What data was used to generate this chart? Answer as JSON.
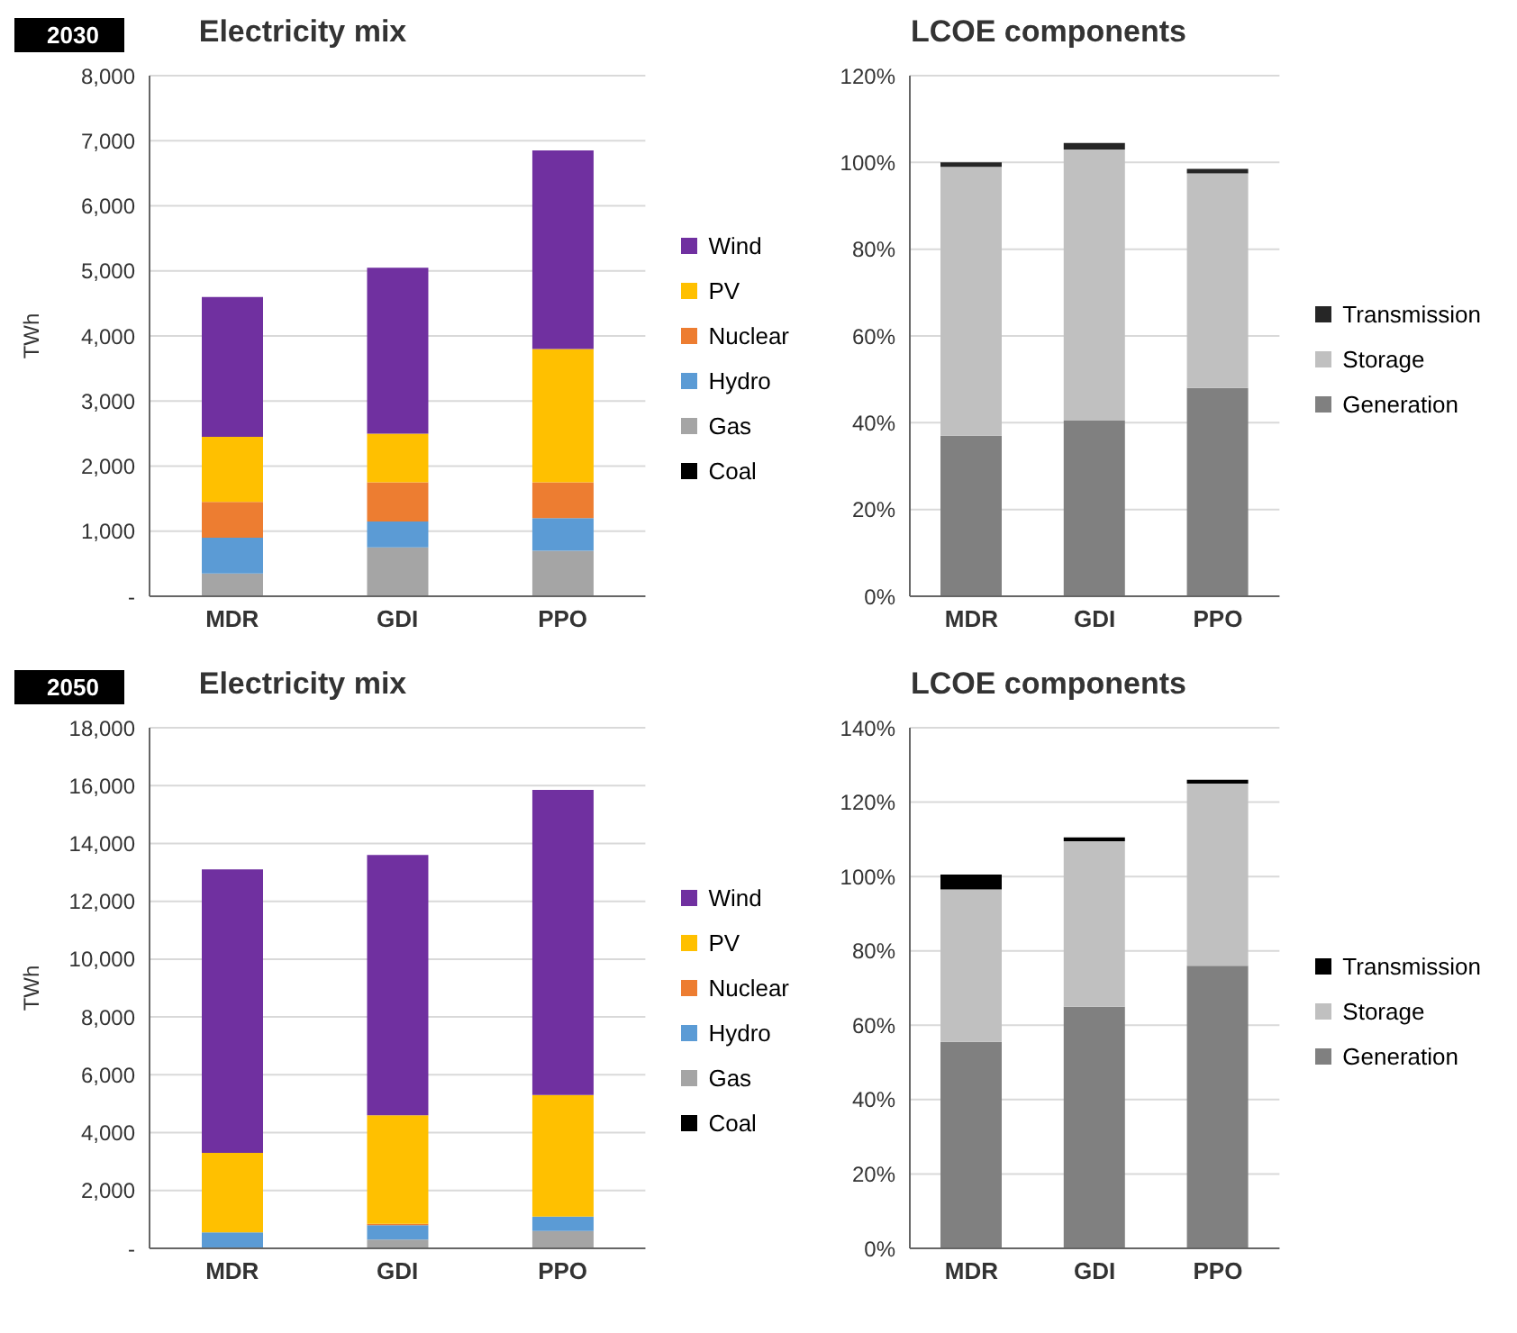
{
  "chart_data": [
    {
      "type": "bar",
      "title": "Electricity mix",
      "annotations": [
        "2030"
      ],
      "ylabel": "TWh",
      "categories": [
        "MDR",
        "GDI",
        "PPO"
      ],
      "stacked": true,
      "grid": "y",
      "legend": "right",
      "ylim": [
        0,
        8000
      ],
      "yticks": [
        {
          "value": 0,
          "label": "-"
        },
        {
          "value": 1000,
          "label": "1,000"
        },
        {
          "value": 2000,
          "label": "2,000"
        },
        {
          "value": 3000,
          "label": "3,000"
        },
        {
          "value": 4000,
          "label": "4,000"
        },
        {
          "value": 5000,
          "label": "5,000"
        },
        {
          "value": 6000,
          "label": "6,000"
        },
        {
          "value": 7000,
          "label": "7,000"
        },
        {
          "value": 8000,
          "label": "8,000"
        }
      ],
      "series": [
        {
          "name": "Coal",
          "color": "#000000",
          "values": [
            0,
            0,
            0
          ]
        },
        {
          "name": "Gas",
          "color": "#a5a5a5",
          "values": [
            350,
            750,
            700
          ]
        },
        {
          "name": "Hydro",
          "color": "#5b9bd5",
          "values": [
            550,
            400,
            500
          ]
        },
        {
          "name": "Nuclear",
          "color": "#ed7d31",
          "values": [
            550,
            600,
            550
          ]
        },
        {
          "name": "PV",
          "color": "#ffc000",
          "values": [
            1000,
            750,
            2050
          ]
        },
        {
          "name": "Wind",
          "color": "#7030a0",
          "values": [
            2150,
            2550,
            3050
          ]
        }
      ]
    },
    {
      "type": "bar",
      "title": "LCOE components",
      "categories": [
        "MDR",
        "GDI",
        "PPO"
      ],
      "stacked": true,
      "grid": "y",
      "legend": "right",
      "ylim": [
        0,
        120
      ],
      "yticks": [
        {
          "value": 0,
          "label": "0%"
        },
        {
          "value": 20,
          "label": "20%"
        },
        {
          "value": 40,
          "label": "40%"
        },
        {
          "value": 60,
          "label": "60%"
        },
        {
          "value": 80,
          "label": "80%"
        },
        {
          "value": 100,
          "label": "100%"
        },
        {
          "value": 120,
          "label": "120%"
        }
      ],
      "series": [
        {
          "name": "Generation",
          "color": "#808080",
          "values": [
            37,
            40.5,
            48
          ]
        },
        {
          "name": "Storage",
          "color": "#c0c0c0",
          "values": [
            62,
            62.5,
            49.5
          ]
        },
        {
          "name": "Transmission",
          "color": "#262626",
          "values": [
            1,
            1.5,
            1
          ]
        }
      ]
    },
    {
      "type": "bar",
      "title": "Electricity mix",
      "annotations": [
        "2050"
      ],
      "ylabel": "TWh",
      "categories": [
        "MDR",
        "GDI",
        "PPO"
      ],
      "stacked": true,
      "grid": "y",
      "legend": "right",
      "ylim": [
        0,
        18000
      ],
      "yticks": [
        {
          "value": 0,
          "label": "-"
        },
        {
          "value": 2000,
          "label": "2,000"
        },
        {
          "value": 4000,
          "label": "4,000"
        },
        {
          "value": 6000,
          "label": "6,000"
        },
        {
          "value": 8000,
          "label": "8,000"
        },
        {
          "value": 10000,
          "label": "10,000"
        },
        {
          "value": 12000,
          "label": "12,000"
        },
        {
          "value": 14000,
          "label": "14,000"
        },
        {
          "value": 16000,
          "label": "16,000"
        },
        {
          "value": 18000,
          "label": "18,000"
        }
      ],
      "series": [
        {
          "name": "Coal",
          "color": "#000000",
          "values": [
            0,
            0,
            0
          ]
        },
        {
          "name": "Gas",
          "color": "#a5a5a5",
          "values": [
            null,
            300,
            600
          ]
        },
        {
          "name": "Hydro",
          "color": "#5b9bd5",
          "values": [
            550,
            500,
            500
          ]
        },
        {
          "name": "Nuclear",
          "color": "#ed7d31",
          "values": [
            0,
            50,
            0
          ]
        },
        {
          "name": "PV",
          "color": "#ffc000",
          "values": [
            2750,
            3750,
            4200
          ]
        },
        {
          "name": "Wind",
          "color": "#7030a0",
          "values": [
            9800,
            9000,
            10550
          ]
        }
      ]
    },
    {
      "type": "bar",
      "title": "LCOE components",
      "categories": [
        "MDR",
        "GDI",
        "PPO"
      ],
      "stacked": true,
      "grid": "y",
      "legend": "right",
      "ylim": [
        0,
        140
      ],
      "yticks": [
        {
          "value": 0,
          "label": "0%"
        },
        {
          "value": 20,
          "label": "20%"
        },
        {
          "value": 40,
          "label": "40%"
        },
        {
          "value": 60,
          "label": "60%"
        },
        {
          "value": 80,
          "label": "80%"
        },
        {
          "value": 100,
          "label": "100%"
        },
        {
          "value": 120,
          "label": "120%"
        },
        {
          "value": 140,
          "label": "140%"
        }
      ],
      "series": [
        {
          "name": "Generation",
          "color": "#808080",
          "values": [
            55.5,
            65,
            76
          ]
        },
        {
          "name": "Storage",
          "color": "#c0c0c0",
          "values": [
            41,
            44.5,
            49
          ]
        },
        {
          "name": "Transmission",
          "color": "#000000",
          "values": [
            4,
            1,
            1
          ]
        }
      ]
    }
  ]
}
